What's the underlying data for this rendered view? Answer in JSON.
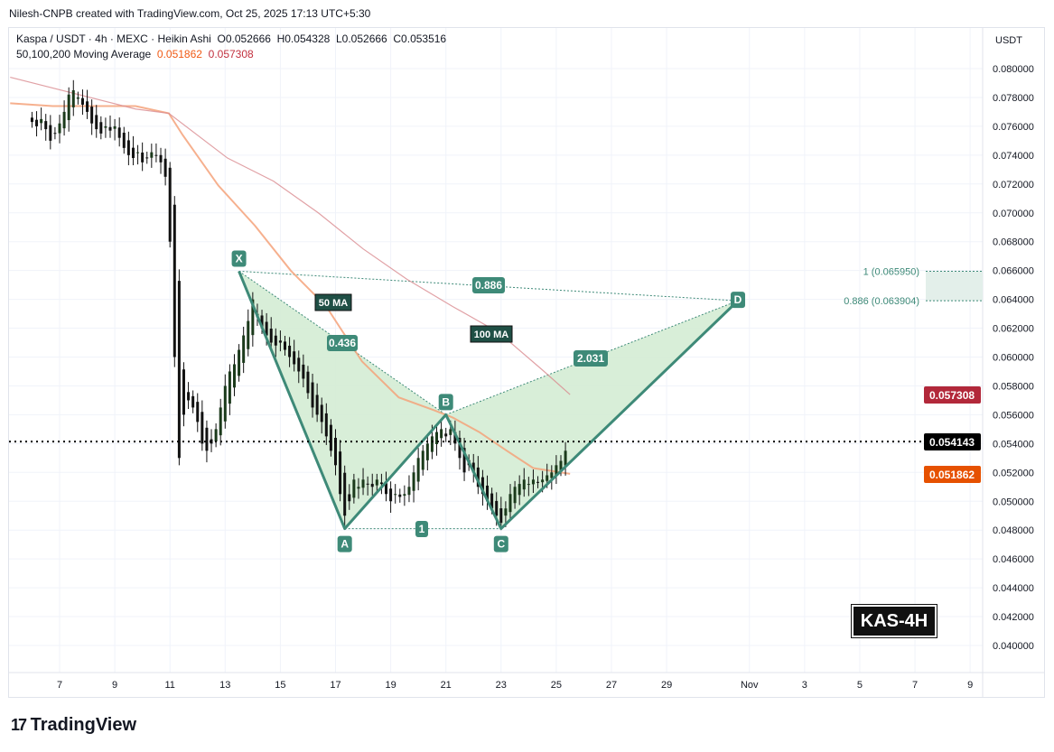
{
  "header": {
    "credit": "Nilesh-CNPB created with TradingView.com, Oct 25, 2025 17:13 UTC+5:30",
    "legend_symbol": "Kaspa / USDT · 4h · MEXC · Heikin Ashi",
    "open": "O0.052666",
    "high": "H0.054328",
    "low": "L0.052666",
    "close": "C0.053516",
    "ma_label": "50,100,200 Moving Average",
    "ma50_value": "0.051862",
    "ma100_value": "0.057308"
  },
  "axis": {
    "currency": "USDT"
  },
  "badge": "KAS-4H",
  "logo": "TradingView",
  "colors": {
    "ma50": "#f5a27a",
    "ma100": "#d98a8f",
    "pattern": "#3e8a78",
    "pattern_fill": "#d4ecd4",
    "ma50_tag": "#e65100",
    "ma100_tag": "#b2283a",
    "last_tag": "#000000"
  },
  "chart_data": {
    "type": "candlestick",
    "style": "Heikin Ashi",
    "ylim": [
      0.039,
      0.0815
    ],
    "y_ticks": [
      "0.080000",
      "0.078000",
      "0.076000",
      "0.074000",
      "0.072000",
      "0.070000",
      "0.068000",
      "0.066000",
      "0.064000",
      "0.062000",
      "0.060000",
      "0.058000",
      "0.056000",
      "0.054000",
      "0.052000",
      "0.050000",
      "0.048000",
      "0.046000",
      "0.044000",
      "0.042000",
      "0.040000"
    ],
    "x_ticks": [
      {
        "label": "7",
        "date": "2025-10-07"
      },
      {
        "label": "9",
        "date": "2025-10-09"
      },
      {
        "label": "11",
        "date": "2025-10-11"
      },
      {
        "label": "13",
        "date": "2025-10-13"
      },
      {
        "label": "15",
        "date": "2025-10-15"
      },
      {
        "label": "17",
        "date": "2025-10-17"
      },
      {
        "label": "19",
        "date": "2025-10-19"
      },
      {
        "label": "21",
        "date": "2025-10-21"
      },
      {
        "label": "23",
        "date": "2025-10-23"
      },
      {
        "label": "25",
        "date": "2025-10-25"
      },
      {
        "label": "27",
        "date": "2025-10-27"
      },
      {
        "label": "29",
        "date": "2025-10-29"
      },
      {
        "label": "Nov",
        "date": "2025-11-01"
      },
      {
        "label": "3",
        "date": "2025-11-03"
      },
      {
        "label": "5",
        "date": "2025-11-05"
      },
      {
        "label": "7",
        "date": "2025-11-07"
      },
      {
        "label": "9",
        "date": "2025-11-09"
      }
    ],
    "grid": true,
    "candles_start": "2025-10-06T00:00",
    "interval_hours": 4,
    "closes": [
      0.0763,
      0.076,
      0.0765,
      0.0758,
      0.075,
      0.0755,
      0.0762,
      0.077,
      0.0782,
      0.0785,
      0.078,
      0.0775,
      0.077,
      0.0762,
      0.0758,
      0.0755,
      0.076,
      0.0757,
      0.076,
      0.0752,
      0.0745,
      0.074,
      0.0738,
      0.0742,
      0.0735,
      0.0738,
      0.0742,
      0.074,
      0.0735,
      0.0725,
      0.068,
      0.06,
      0.053,
      0.056,
      0.057,
      0.0565,
      0.0555,
      0.054,
      0.0535,
      0.054,
      0.055,
      0.0565,
      0.058,
      0.059,
      0.0595,
      0.0605,
      0.0615,
      0.0625,
      0.064,
      0.063,
      0.062,
      0.0615,
      0.061,
      0.0608,
      0.061,
      0.0605,
      0.06,
      0.0595,
      0.059,
      0.0585,
      0.0575,
      0.0565,
      0.056,
      0.0555,
      0.0545,
      0.0535,
      0.0525,
      0.0505,
      0.049,
      0.05,
      0.0515,
      0.051,
      0.0515,
      0.0512,
      0.051,
      0.0515,
      0.0512,
      0.0505,
      0.05,
      0.0505,
      0.0503,
      0.0505,
      0.051,
      0.052,
      0.053,
      0.0535,
      0.054,
      0.0545,
      0.0548,
      0.055,
      0.0545,
      0.055,
      0.054,
      0.053,
      0.052,
      0.0525,
      0.052,
      0.051,
      0.0505,
      0.05,
      0.0495,
      0.049,
      0.0485,
      0.0495,
      0.0505,
      0.051,
      0.0512,
      0.0515,
      0.0512,
      0.0515,
      0.0513,
      0.0515,
      0.0518,
      0.052,
      0.0525,
      0.0528,
      0.0535
    ],
    "series": [
      {
        "name": "50 MA",
        "points": [
          [
            "2025-10-05T05:00",
            0.0776
          ],
          [
            "2025-10-06T18:00",
            0.0774
          ],
          [
            "2025-10-09T18:00",
            0.0774
          ],
          [
            "2025-10-10T23:00",
            0.0769
          ],
          [
            "2025-10-11T11:00",
            0.0754
          ],
          [
            "2025-10-12T18:00",
            0.0719
          ],
          [
            "2025-10-14T02:00",
            0.0691
          ],
          [
            "2025-10-15T09:00",
            0.066
          ],
          [
            "2025-10-16T16:00",
            0.0635
          ],
          [
            "2025-10-17T23:00",
            0.0597
          ],
          [
            "2025-10-19T07:00",
            0.0572
          ],
          [
            "2025-10-20T14:00",
            0.0563
          ],
          [
            "2025-10-21T06:00",
            0.0558
          ],
          [
            "2025-10-22T05:00",
            0.0548
          ],
          [
            "2025-10-23T05:00",
            0.0535
          ],
          [
            "2025-10-24T04:00",
            0.0523
          ],
          [
            "2025-10-25T12:00",
            0.0519
          ]
        ]
      },
      {
        "name": "100 MA",
        "points": [
          [
            "2025-10-05T05:00",
            0.0794
          ],
          [
            "2025-10-09T18:00",
            0.0772
          ],
          [
            "2025-10-10T23:00",
            0.0769
          ],
          [
            "2025-10-13T02:00",
            0.0738
          ],
          [
            "2025-10-14T18:00",
            0.0722
          ],
          [
            "2025-10-16T09:00",
            0.07
          ],
          [
            "2025-10-18T00:00",
            0.0675
          ],
          [
            "2025-10-19T14:00",
            0.0654
          ],
          [
            "2025-10-21T06:00",
            0.0635
          ],
          [
            "2025-10-22T22:00",
            0.0617
          ],
          [
            "2025-10-24T12:00",
            0.0591
          ],
          [
            "2025-10-25T12:00",
            0.0574
          ]
        ]
      }
    ],
    "pattern": {
      "points": [
        {
          "label": "X",
          "date": "2025-10-13T12:00",
          "price": 0.06595
        },
        {
          "label": "A",
          "date": "2025-10-17T08:00",
          "price": 0.0481
        },
        {
          "label": "B",
          "date": "2025-10-21T00:00",
          "price": 0.056
        },
        {
          "label": "C",
          "date": "2025-10-23T00:00",
          "price": 0.0481
        },
        {
          "label": "D",
          "date": "2025-10-31T14:00",
          "price": 0.063904
        }
      ],
      "ratios": {
        "xb": "0.436",
        "ac": "1",
        "bd": "2.031",
        "xd": "0.886"
      }
    },
    "annotations": {
      "ma50": "50 MA",
      "ma100": "100 MA",
      "fib_1": "1 (0.065950)",
      "fib_0886": "0.886 (0.063904)"
    },
    "fib_levels": [
      0.06595,
      0.063904
    ],
    "last_price": 0.054143,
    "price_tags": {
      "ma100": "0.057308",
      "last": "0.054143",
      "ma50": "0.051862"
    }
  }
}
